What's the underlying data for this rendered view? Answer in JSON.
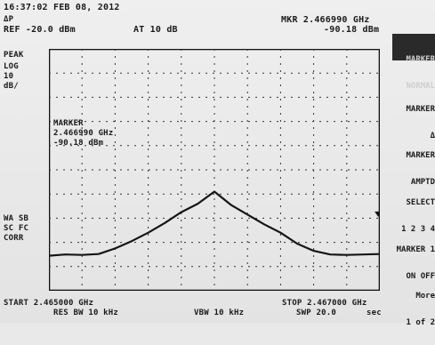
{
  "header": {
    "timestamp": "16:37:02 FEB 08, 2012",
    "marker_prefix": "ΔP",
    "ref": "REF -20.0 dBm",
    "atten": "AT 10 dB",
    "mkr_freq": "MKR 2.466990 GHz",
    "mkr_level": "-90.18 dBm"
  },
  "left_panel": {
    "peak": "PEAK",
    "log": "LOG",
    "scale_value": "10",
    "scale_unit": "dB/",
    "wa_sb": "WA SB",
    "sc_fc": "SC FC",
    "corr": "CORR"
  },
  "marker_box": {
    "title": "MARKER",
    "freq": "2.466990 GHz",
    "level": "-90.18 dBm"
  },
  "footer": {
    "start": "START 2.465000 GHz",
    "res_bw": "RES BW 10 kHz",
    "vbw": "VBW 10 kHz",
    "stop": "STOP 2.467000 GHz",
    "swp": "SWP 20.0",
    "swp_unit": "sec"
  },
  "softkeys": {
    "top_active_1": "MARKER",
    "top_active_2": "NORMAL",
    "k1_1": "MARKER",
    "k1_2": "Δ",
    "k2_1": "MARKER",
    "k2_2": "AMPTD",
    "k3_1": "SELECT",
    "k3_2": "1 2 3 4",
    "k4_1": "MARKER 1",
    "k4_2": "ON OFF",
    "k5_1": "More",
    "k5_2": "1 of 2"
  },
  "chart_data": {
    "type": "line",
    "x_unit": "GHz",
    "y_unit": "dBm",
    "x_range": [
      2.465,
      2.467
    ],
    "y_range": [
      -120,
      -20
    ],
    "grid": true,
    "ref_level": -20,
    "scale_per_div": 10,
    "marker": {
      "x": 2.46699,
      "y": -90.18
    },
    "series": [
      {
        "x": [
          2.465,
          2.4651,
          2.4652,
          2.4653,
          2.4654,
          2.4655,
          2.4656,
          2.4657,
          2.4658,
          2.4659,
          2.466,
          2.4661,
          2.4662,
          2.4663,
          2.4664,
          2.4665,
          2.4666,
          2.4667,
          2.4668,
          2.4669,
          2.467
        ],
        "y": [
          -105.5,
          -105.0,
          -105.2,
          -104.8,
          -102.5,
          -99.5,
          -96.0,
          -92.0,
          -87.5,
          -84.0,
          -79.0,
          -84.5,
          -88.5,
          -92.5,
          -96.0,
          -100.5,
          -103.5,
          -105.0,
          -105.2,
          -105.0,
          -104.8
        ]
      }
    ]
  }
}
